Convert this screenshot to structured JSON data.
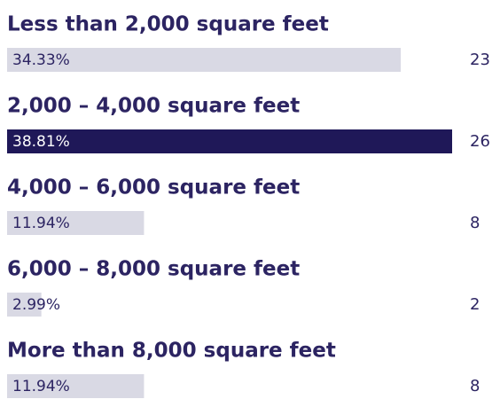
{
  "chart_data": {
    "type": "bar",
    "categories": [
      "Less than 2,000 square feet",
      "2,000 – 4,000 square feet",
      "4,000 – 6,000 square feet",
      "6,000 – 8,000 square feet",
      "More than 8,000 square feet"
    ],
    "values": [
      34.33,
      38.81,
      11.94,
      2.99,
      11.94
    ],
    "value_labels": [
      "34.33%",
      "38.81%",
      "11.94%",
      "2.99%",
      "11.94%"
    ],
    "counts": [
      23,
      26,
      8,
      2,
      8
    ],
    "colors": [
      "#d9d9e4",
      "#1f1858",
      "#d9d9e4",
      "#d9d9e4",
      "#d9d9e4"
    ]
  }
}
